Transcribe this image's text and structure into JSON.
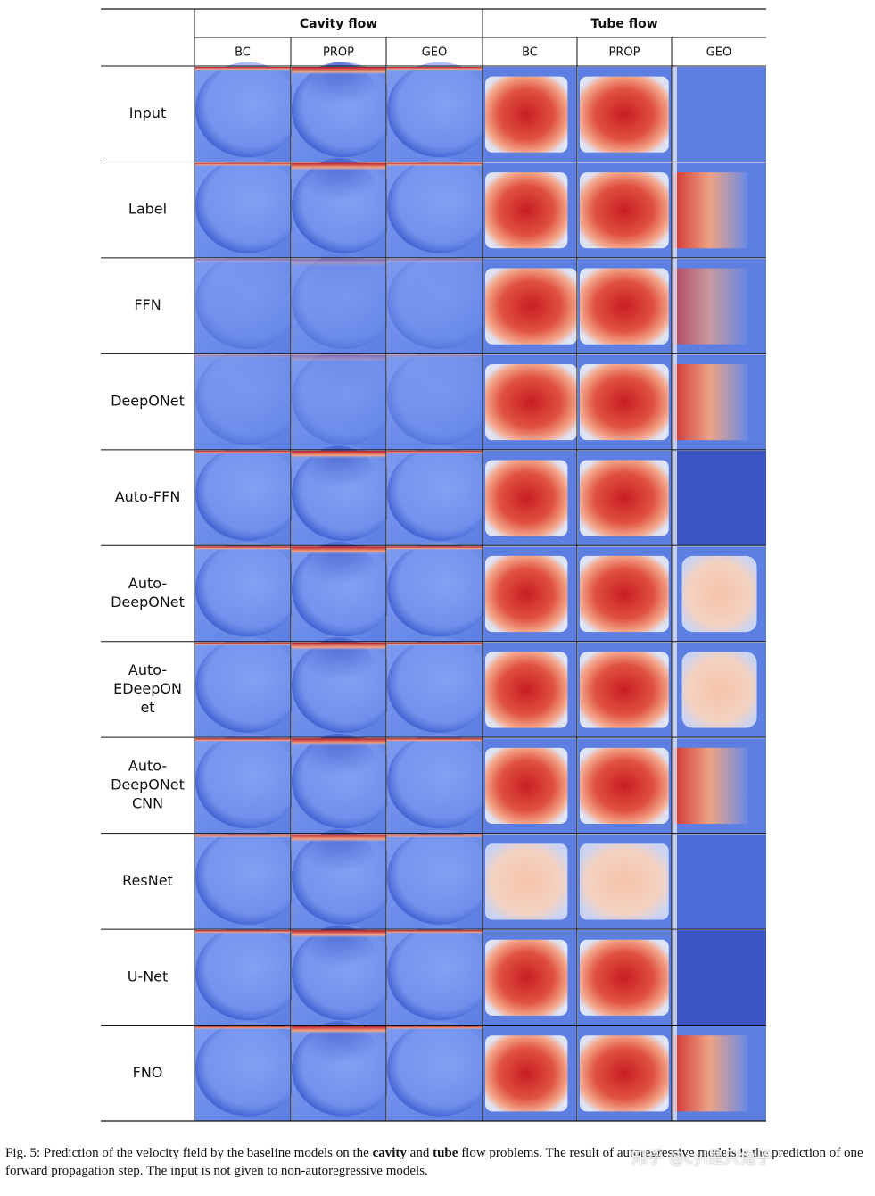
{
  "table": {
    "groups": [
      "Cavity flow",
      "Tube flow"
    ],
    "columns": [
      "BC",
      "PROP",
      "GEO",
      "BC",
      "PROP",
      "GEO"
    ],
    "rows": [
      [
        "Input"
      ],
      [
        "Label"
      ],
      [
        "FFN"
      ],
      [
        "DeepONet"
      ],
      [
        "Auto-FFN"
      ],
      [
        "Auto-",
        "DeepONet"
      ],
      [
        "Auto-",
        "EDeepON",
        "et"
      ],
      [
        "Auto-",
        "DeepONet",
        "CNN"
      ],
      [
        "ResNet"
      ],
      [
        "U-Net"
      ],
      [
        "FNO"
      ]
    ]
  },
  "caption": [
    "Fig. 5: Prediction of the velocity field by the baseline models on the ",
    "cavity",
    " and ",
    "tube",
    " flow problems. The result of autoregressive models is the prediction of one forward propagation step. The input is not given to non-autoregressive models."
  ],
  "watermark": "知乎 @cyl是只兔子"
}
